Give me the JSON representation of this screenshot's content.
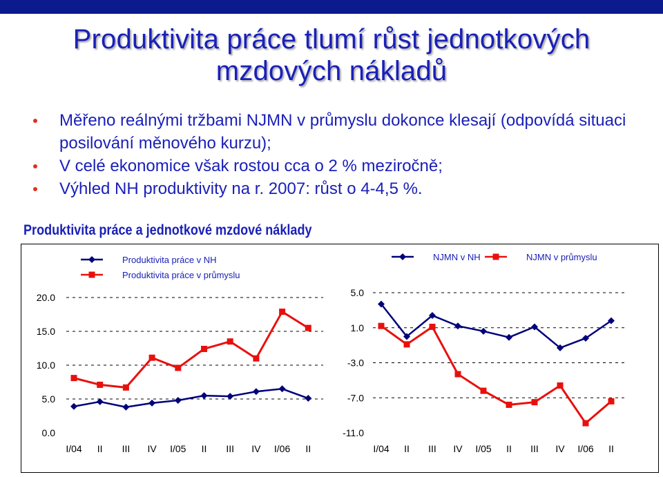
{
  "slide": {
    "title_line1": "Produktivita práce tlumí růst jednotkových",
    "title_line2": "mzdových nákladů",
    "bullets": [
      "Měřeno reálnými tržbami NJMN v průmyslu dokonce klesají (odpovídá situaci posilování měnového kurzu);",
      "V celé ekonomice však rostou cca o 2 % meziročně;",
      "Výhled NH produktivity na r. 2007: růst o 4-4,5 %."
    ],
    "chart_title": "Produktivita práce a jednotkové mzdové náklady",
    "colors": {
      "title": "#1a20b8",
      "bullet_dot": "#e03020",
      "topbar": "#0b1a8c",
      "series_blue": "#00007a",
      "series_red": "#e8100c"
    }
  },
  "chart_data": [
    {
      "type": "line",
      "title": "",
      "categories": [
        "I/04",
        "II",
        "III",
        "IV",
        "I/05",
        "II",
        "III",
        "IV",
        "I/06",
        "II"
      ],
      "ylim": [
        0,
        20
      ],
      "yticks": [
        "20.0",
        "15.0",
        "10.0",
        "5.0",
        "0.0"
      ],
      "grid": "dashed horizontal",
      "legend": "top-left",
      "series": [
        {
          "name": "Produktivita práce v NH",
          "color": "#00007a",
          "marker": "diamond",
          "values": [
            3.9,
            4.6,
            3.8,
            4.4,
            4.8,
            5.5,
            5.4,
            6.1,
            6.5,
            5.1
          ]
        },
        {
          "name": "Produktivita práce v průmyslu",
          "color": "#e8100c",
          "marker": "square",
          "values": [
            8.1,
            7.1,
            6.7,
            11.1,
            9.6,
            12.4,
            13.5,
            11.0,
            17.9,
            15.5
          ]
        }
      ]
    },
    {
      "type": "line",
      "title": "",
      "categories": [
        "I/04",
        "II",
        "III",
        "IV",
        "I/05",
        "II",
        "III",
        "IV",
        "I/06",
        "II"
      ],
      "ylim": [
        -11,
        5
      ],
      "yticks": [
        "5.0",
        "1.0",
        "-3.0",
        "-7.0",
        "-11.0"
      ],
      "grid": "dashed horizontal",
      "legend": "top",
      "series": [
        {
          "name": "NJMN v NH",
          "color": "#00007a",
          "marker": "diamond",
          "values": [
            3.7,
            0.0,
            2.4,
            1.2,
            0.6,
            -0.1,
            1.1,
            -1.3,
            -0.2,
            1.8
          ]
        },
        {
          "name": "NJMN v průmyslu",
          "color": "#e8100c",
          "marker": "square",
          "values": [
            1.2,
            -0.9,
            1.1,
            -4.3,
            -6.2,
            -7.8,
            -7.5,
            -5.6,
            -9.9,
            -7.4
          ]
        }
      ]
    }
  ]
}
